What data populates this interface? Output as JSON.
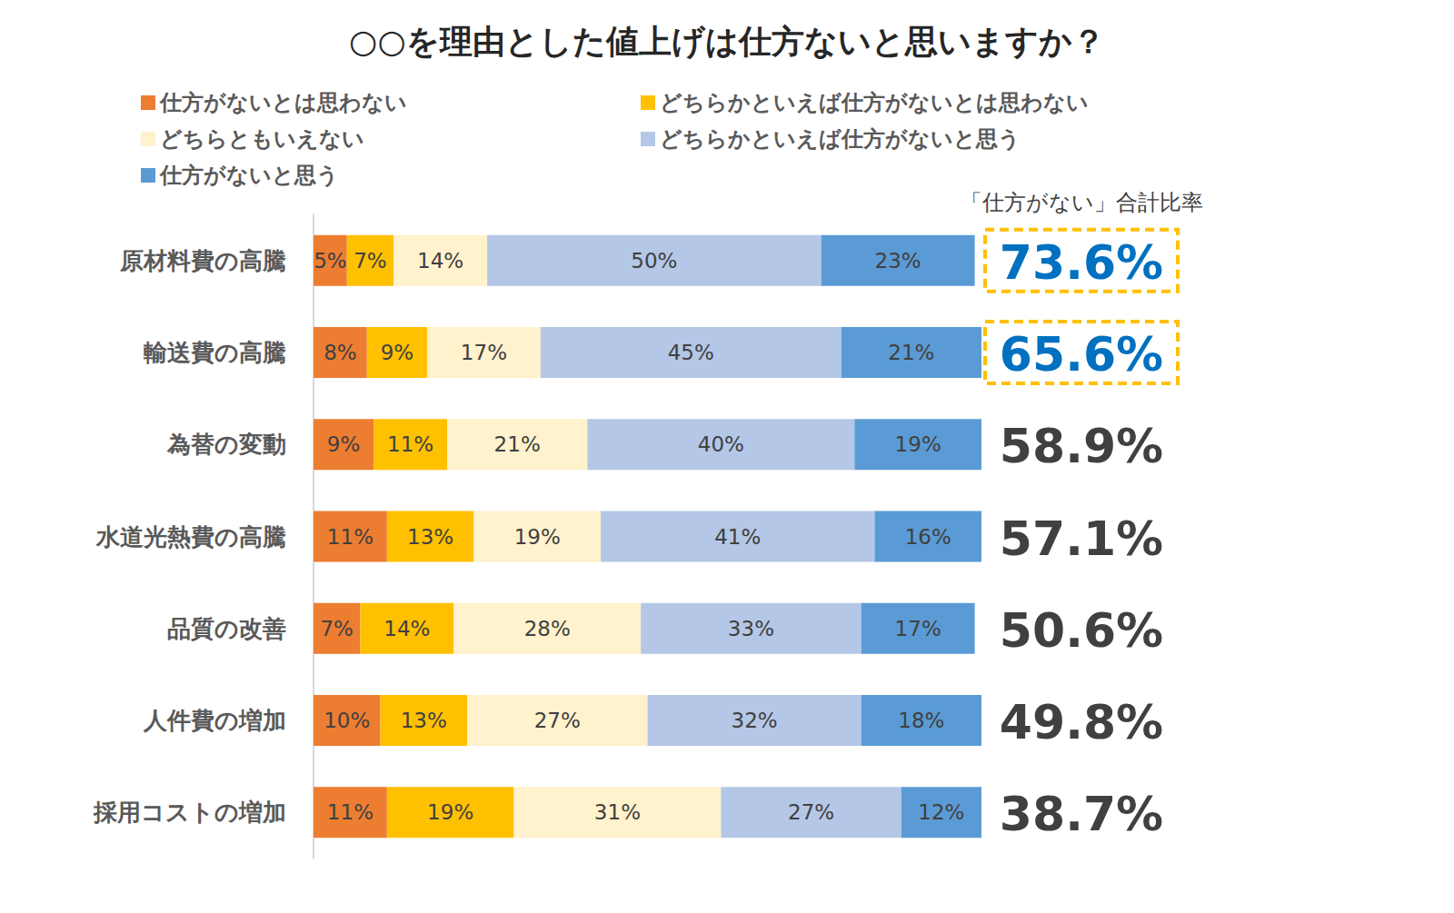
{
  "chart_data": {
    "type": "bar",
    "title": "○○を理由とした値上げは仕方ないと思いますか？",
    "orientation": "horizontal",
    "stacked": true,
    "data_labels": true,
    "tick_labels": "y",
    "categories": [
      "原材料費の高騰",
      "輸送費の高騰",
      "為替の変動",
      "水道光熱費の高騰",
      "品質の改善",
      "人件費の増加",
      "採用コストの増加"
    ],
    "xlim": [
      0,
      100
    ],
    "series": [
      {
        "name": "仕方がないとは思わない",
        "color": "#ed7d31",
        "values": [
          5,
          8,
          9,
          11,
          7,
          10,
          11
        ],
        "value_labels": [
          "5%",
          "8%",
          "9%",
          "11%",
          "7%",
          "10%",
          "11%"
        ]
      },
      {
        "name": "どちらかといえば仕方がないとは思わない",
        "color": "#ffc000",
        "values": [
          7,
          9,
          11,
          13,
          14,
          13,
          19
        ],
        "value_labels": [
          "7%",
          "9%",
          "11%",
          "13%",
          "14%",
          "13%",
          "19%"
        ]
      },
      {
        "name": "どちらともいえない",
        "color": "#fff2cc",
        "values": [
          14,
          17,
          21,
          19,
          28,
          27,
          31
        ],
        "value_labels": [
          "14%",
          "17%",
          "21%",
          "19%",
          "28%",
          "27%",
          "31%"
        ]
      },
      {
        "name": "どちらかといえば仕方がないと思う",
        "color": "#b4c7e7",
        "values": [
          50,
          45,
          40,
          41,
          33,
          32,
          27
        ],
        "value_labels": [
          "50%",
          "45%",
          "40%",
          "41%",
          "33%",
          "32%",
          "27%"
        ]
      },
      {
        "name": "仕方がないと思う",
        "color": "#5b9bd5",
        "values": [
          23,
          21,
          19,
          16,
          17,
          18,
          12
        ],
        "value_labels": [
          "23%",
          "21%",
          "19%",
          "16%",
          "17%",
          "18%",
          "12%"
        ]
      }
    ],
    "totals": {
      "title": "「仕方がない」合計比率",
      "values": [
        73.6,
        65.6,
        58.9,
        57.1,
        50.6,
        49.8,
        38.7
      ],
      "value_labels": [
        "73.6%",
        "65.6%",
        "58.9%",
        "57.1%",
        "50.6%",
        "49.8%",
        "38.7%"
      ],
      "highlight": [
        true,
        true,
        false,
        false,
        false,
        false,
        false
      ]
    }
  }
}
